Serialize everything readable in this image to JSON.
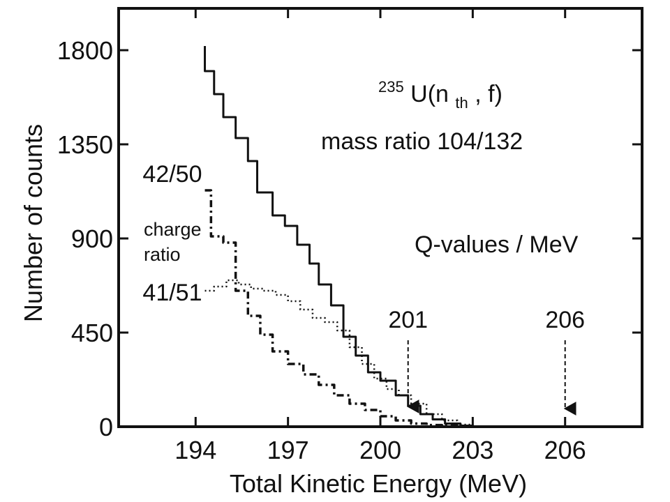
{
  "chart_data": {
    "type": "line",
    "title": "",
    "xlabel": "Total Kinetic Energy (MeV)",
    "ylabel": "Number of counts",
    "xlim": [
      191.5,
      208.5
    ],
    "ylim": [
      0,
      2000
    ],
    "xticks": [
      194,
      197,
      200,
      203,
      206
    ],
    "xtick_labels": [
      "194",
      "197",
      "200",
      "203",
      "206"
    ],
    "yticks": [
      0,
      450,
      900,
      1350,
      1800
    ],
    "ytick_labels": [
      "0",
      "450",
      "900",
      "1350",
      "1800"
    ],
    "grid": false,
    "reaction": {
      "prefix": "235",
      "main": "U(n",
      "subscript": "th",
      "suffix": ", f)"
    },
    "mass_ratio_label": "mass ratio 104/132",
    "charge_ratio_label_line1": "charge",
    "charge_ratio_label_line2": "ratio",
    "q_values_label": "Q-values / MeV",
    "q_values": [
      {
        "label": "201",
        "x": 200.9,
        "arrow_y": 90
      },
      {
        "label": "206",
        "x": 206.0,
        "arrow_y": 80
      }
    ],
    "series": [
      {
        "name": "total (mass ratio 104/132)",
        "style": "solid",
        "x": [
          194.3,
          194.3,
          194.6,
          194.9,
          195.3,
          195.7,
          196.0,
          196.5,
          196.9,
          197.3,
          197.7,
          198.0,
          198.4,
          198.8,
          199.2,
          199.6,
          200.0,
          200.5,
          200.9,
          201.3,
          201.7,
          202.1,
          202.6,
          203.0
        ],
        "values": [
          1820,
          1700,
          1590,
          1480,
          1380,
          1270,
          1120,
          1010,
          960,
          870,
          780,
          680,
          580,
          430,
          340,
          260,
          220,
          150,
          100,
          60,
          35,
          15,
          5,
          0
        ]
      },
      {
        "name": "42/50",
        "style": "dash-dot",
        "x": [
          194.3,
          194.5,
          194.9,
          195.3,
          195.7,
          196.1,
          196.5,
          197.0,
          197.5,
          198.0,
          198.5,
          199.0,
          199.5,
          200.0,
          200.5,
          201.0,
          201.5,
          202.0,
          202.5,
          203.0
        ],
        "values": [
          1130,
          910,
          880,
          650,
          530,
          440,
          360,
          300,
          250,
          200,
          150,
          110,
          80,
          50,
          30,
          15,
          8,
          4,
          2,
          0
        ]
      },
      {
        "name": "41/51",
        "style": "dotted",
        "x": [
          194.3,
          194.6,
          195.0,
          195.4,
          195.8,
          196.2,
          196.6,
          197.0,
          197.4,
          197.8,
          198.2,
          198.6,
          199.0,
          199.4,
          199.8,
          200.2,
          200.6,
          201.0,
          201.5,
          202.0,
          202.5,
          203.0
        ],
        "values": [
          650,
          670,
          700,
          680,
          660,
          650,
          630,
          600,
          560,
          520,
          500,
          460,
          380,
          300,
          230,
          180,
          150,
          110,
          60,
          30,
          10,
          0
        ]
      }
    ]
  }
}
